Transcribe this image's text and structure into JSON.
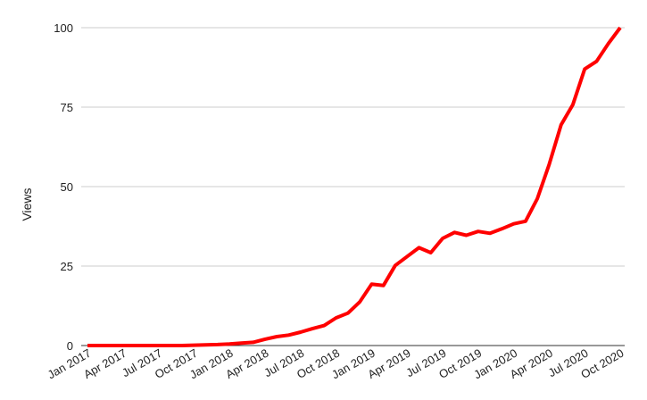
{
  "chart_data": {
    "type": "line",
    "title": "",
    "xlabel": "",
    "ylabel": "Views",
    "ylim": [
      0,
      100
    ],
    "yticks": [
      0,
      25,
      50,
      75,
      100
    ],
    "grid": true,
    "legend": "none",
    "line_color": "#ff0000",
    "xtick_labels": [
      "Jan 2017",
      "Apr 2017",
      "Jul 2017",
      "Oct 2017",
      "Jan 2018",
      "Apr 2018",
      "Jul 2018",
      "Oct 2018",
      "Jan 2019",
      "Apr 2019",
      "Jul 2019",
      "Oct 2019",
      "Jan 2020",
      "Apr 2020",
      "Jul 2020",
      "Oct 2020"
    ],
    "x": [
      "2017-01",
      "2017-02",
      "2017-03",
      "2017-04",
      "2017-05",
      "2017-06",
      "2017-07",
      "2017-08",
      "2017-09",
      "2017-10",
      "2017-11",
      "2017-12",
      "2018-01",
      "2018-02",
      "2018-03",
      "2018-04",
      "2018-05",
      "2018-06",
      "2018-07",
      "2018-08",
      "2018-09",
      "2018-10",
      "2018-11",
      "2018-12",
      "2019-01",
      "2019-02",
      "2019-03",
      "2019-04",
      "2019-05",
      "2019-06",
      "2019-07",
      "2019-08",
      "2019-09",
      "2019-10",
      "2019-11",
      "2019-12",
      "2020-01",
      "2020-02",
      "2020-03",
      "2020-04",
      "2020-05",
      "2020-06",
      "2020-07",
      "2020-08",
      "2020-09",
      "2020-10"
    ],
    "series": [
      {
        "values": [
          0,
          0,
          0,
          0,
          0,
          0,
          0,
          0,
          0,
          0.1,
          0.2,
          0.3,
          0.5,
          0.8,
          1,
          2,
          2.8,
          3.3,
          4.2,
          5.3,
          6.3,
          8.7,
          10.2,
          13.7,
          19.3,
          18.9,
          25.2,
          28,
          30.8,
          29.2,
          33.7,
          35.6,
          34.7,
          35.9,
          35.3,
          36.7,
          38.3,
          39.1,
          46.2,
          57,
          69.4,
          75.8,
          87,
          89.4,
          95,
          100
        ]
      }
    ]
  }
}
